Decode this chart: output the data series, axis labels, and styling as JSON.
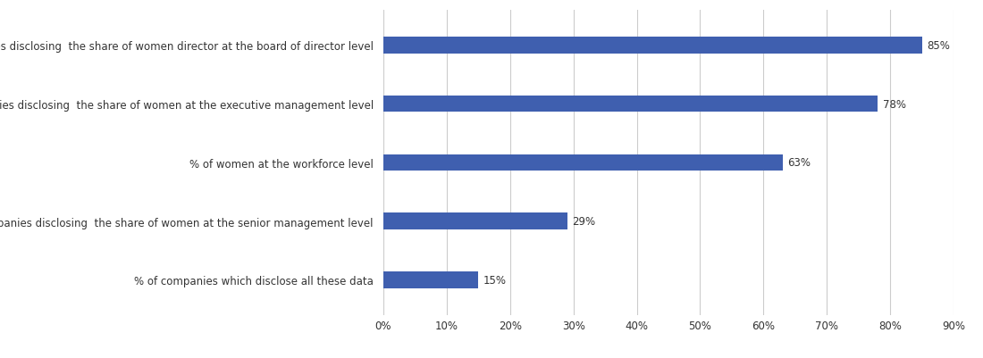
{
  "categories": [
    "% of companies which disclose all these data",
    "% of companies disclosing  the share of women at the senior management level",
    "% of women at the workforce level",
    "% of companies disclosing  the share of women at the executive management level",
    "% of companies disclosing  the share of women director at the board of director level"
  ],
  "values": [
    15,
    29,
    63,
    78,
    85
  ],
  "bar_color": "#3F5FAF",
  "value_labels": [
    "15%",
    "29%",
    "63%",
    "78%",
    "85%"
  ],
  "xlim": [
    0,
    90
  ],
  "xtick_values": [
    0,
    10,
    20,
    30,
    40,
    50,
    60,
    70,
    80,
    90
  ],
  "xtick_labels": [
    "0%",
    "10%",
    "20%",
    "30%",
    "40%",
    "50%",
    "60%",
    "70%",
    "80%",
    "90%"
  ],
  "background_color": "#ffffff",
  "bar_label_fontsize": 8.5,
  "ytick_fontsize": 8.5,
  "xtick_fontsize": 8.5,
  "grid_color": "#cccccc",
  "label_color": "#333333",
  "bar_height": 0.28
}
